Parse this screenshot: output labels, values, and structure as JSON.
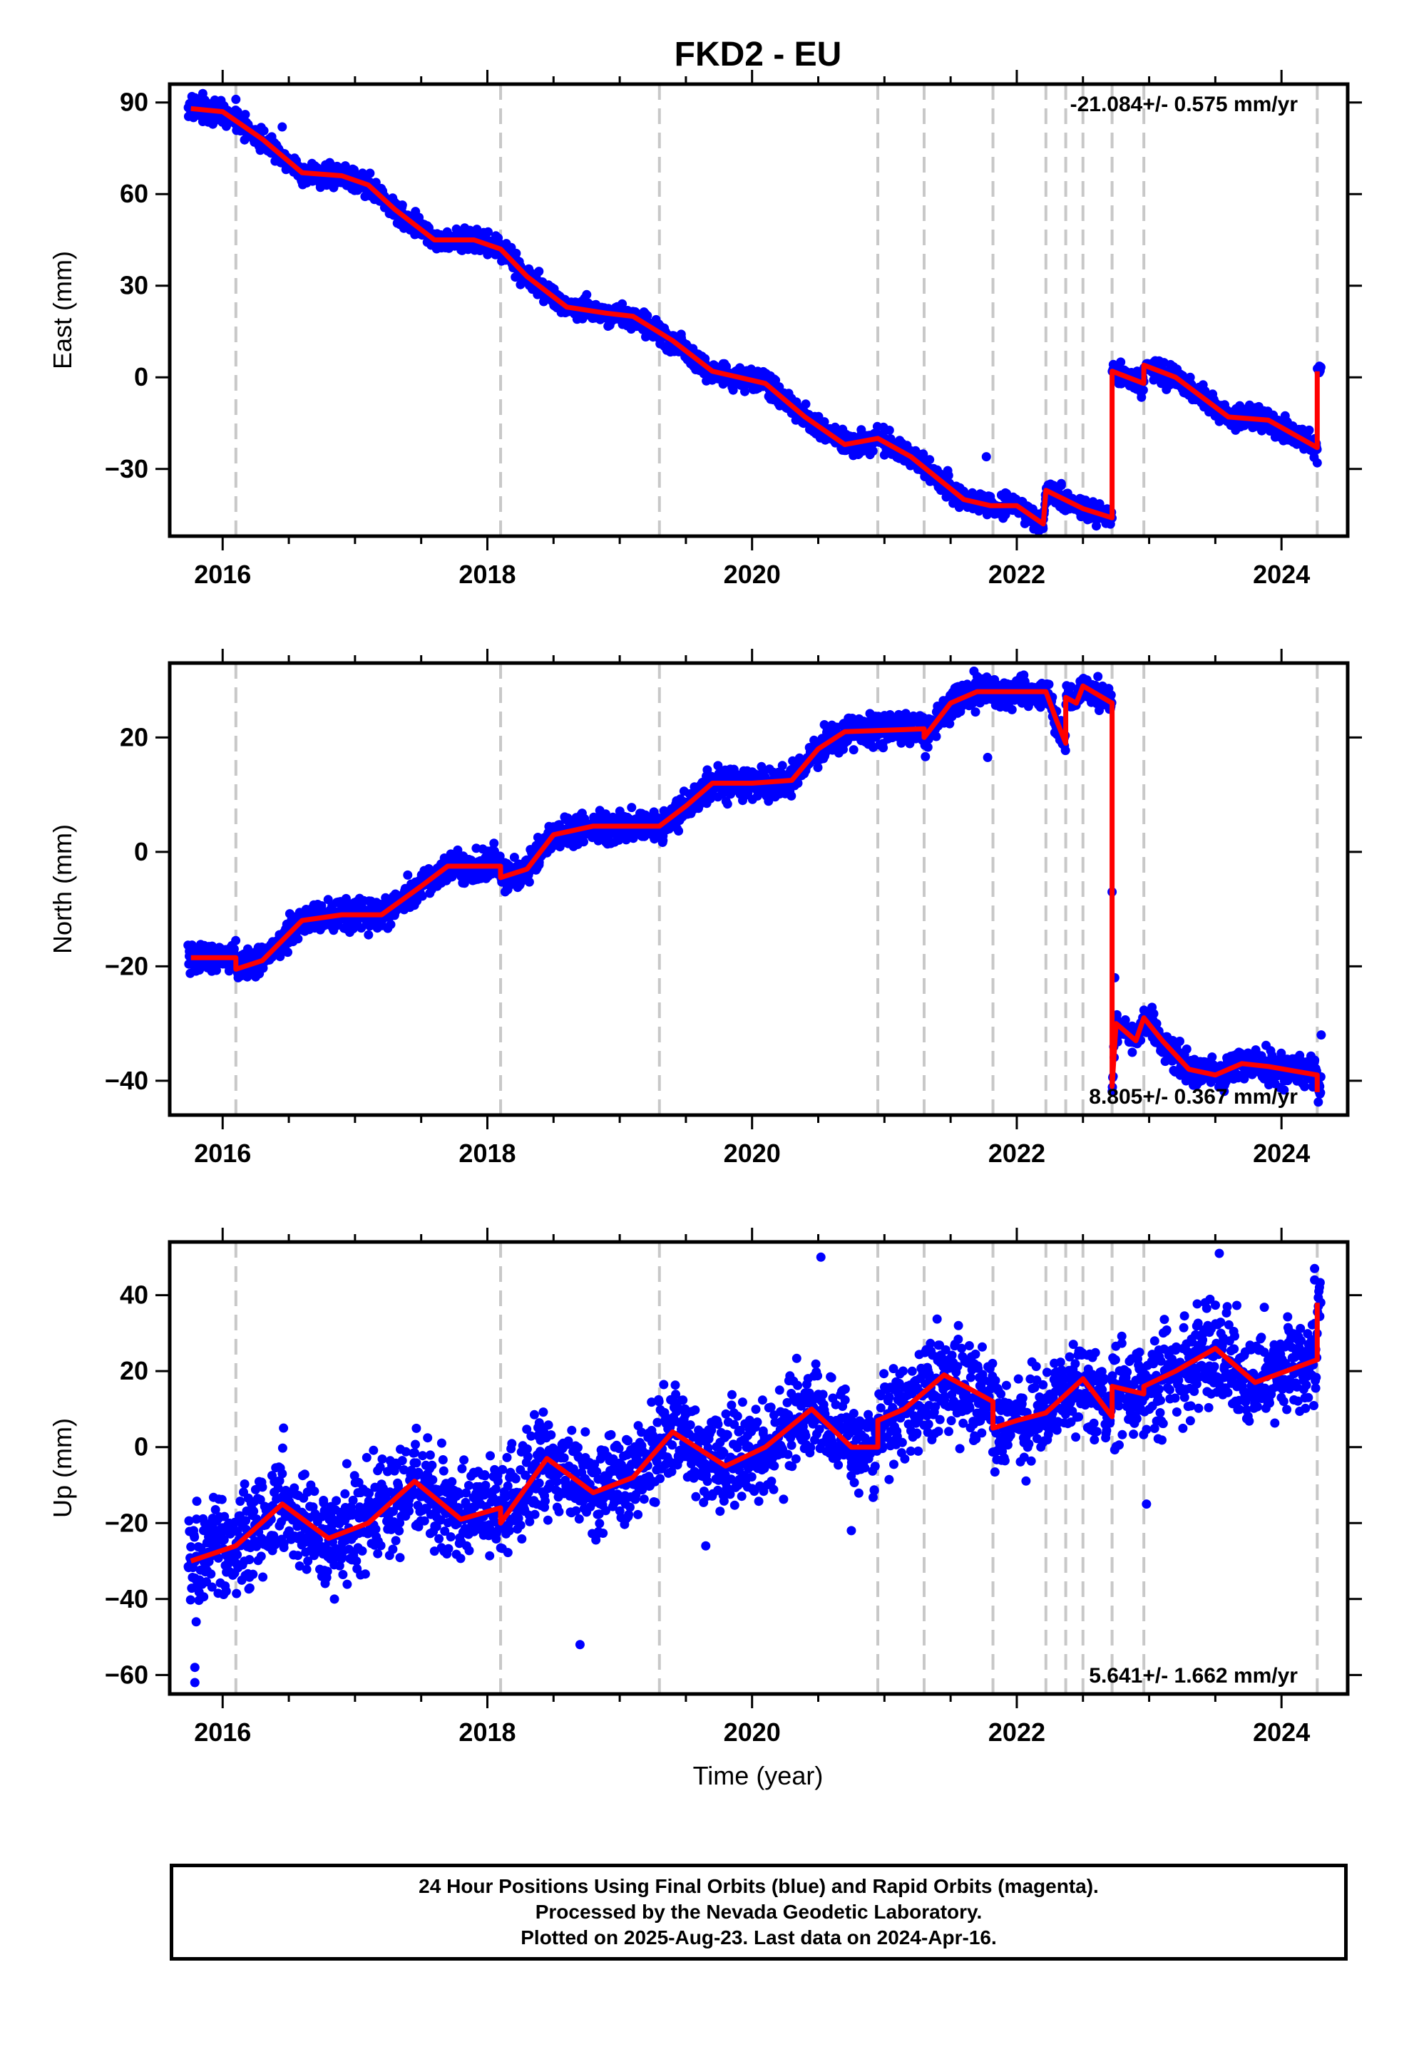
{
  "title": "FKD2 - EU",
  "xlabel": "Time (year)",
  "caption": [
    "24 Hour Positions Using Final Orbits (blue) and Rapid Orbits (magenta).",
    "Processed by the Nevada Geodetic Laboratory.",
    "Plotted on 2025-Aug-23. Last data on 2024-Apr-16."
  ],
  "colors": {
    "points": "#0000ff",
    "model": "#ff0000",
    "dashed": "#c8c8c8",
    "frame": "#000000"
  },
  "chart_data": [
    {
      "type": "scatter",
      "ylabel": "East (mm)",
      "xlim": [
        2015.6,
        2024.5
      ],
      "ylim": [
        -52,
        96
      ],
      "yticks": [
        90,
        60,
        30,
        0,
        -30
      ],
      "ytick_labels": [
        "90",
        "60",
        "30",
        "0",
        "−30"
      ],
      "xticks": [
        2016,
        2018,
        2020,
        2022,
        2024
      ],
      "xtick_labels": [
        "2016",
        "2018",
        "2020",
        "2022",
        "2024"
      ],
      "rate_annotation": "-21.084+/- 0.575 mm/yr",
      "rate_position": "top-right",
      "steps": [
        2016.1,
        2018.1,
        2019.3,
        2020.95,
        2021.3,
        2021.82,
        2022.22,
        2022.37,
        2022.5,
        2022.72,
        2022.96,
        2024.27
      ],
      "model_series": {
        "name": "model fit",
        "points": [
          [
            2015.76,
            88
          ],
          [
            2016.0,
            87
          ],
          [
            2016.3,
            78
          ],
          [
            2016.6,
            67
          ],
          [
            2016.9,
            66
          ],
          [
            2017.1,
            63
          ],
          [
            2017.3,
            55
          ],
          [
            2017.6,
            45
          ],
          [
            2017.9,
            45
          ],
          [
            2018.1,
            42
          ],
          [
            2018.3,
            33
          ],
          [
            2018.6,
            23
          ],
          [
            2018.9,
            21
          ],
          [
            2019.1,
            20
          ],
          [
            2019.4,
            12
          ],
          [
            2019.7,
            2
          ],
          [
            2019.9,
            0
          ],
          [
            2020.1,
            -2
          ],
          [
            2020.4,
            -13
          ],
          [
            2020.7,
            -22
          ],
          [
            2020.95,
            -20
          ],
          [
            2021.2,
            -26
          ],
          [
            2021.6,
            -40
          ],
          [
            2021.8,
            -42
          ],
          [
            2022.0,
            -42
          ],
          [
            2022.2,
            -48
          ],
          [
            2022.22,
            -37
          ],
          [
            2022.5,
            -43
          ],
          [
            2022.72,
            -46
          ],
          [
            2022.72,
            2
          ],
          [
            2022.96,
            -2
          ],
          [
            2022.96,
            4
          ],
          [
            2023.2,
            0
          ],
          [
            2023.6,
            -13
          ],
          [
            2023.9,
            -14
          ],
          [
            2024.27,
            -23
          ],
          [
            2024.27,
            2
          ]
        ]
      },
      "scatter_series": {
        "name": "daily positions",
        "x_range": [
          2015.74,
          2024.3
        ],
        "sigma": 1.8,
        "outliers": [
          [
            2016.45,
            82
          ],
          [
            2017.85,
            43
          ],
          [
            2021.77,
            -26
          ],
          [
            2016.1,
            91
          ],
          [
            2024.27,
            -28
          ]
        ]
      }
    },
    {
      "type": "scatter",
      "ylabel": "North (mm)",
      "xlim": [
        2015.6,
        2024.5
      ],
      "ylim": [
        -46,
        33
      ],
      "yticks": [
        20,
        0,
        -20,
        -40
      ],
      "ytick_labels": [
        "20",
        "0",
        "−20",
        "−40"
      ],
      "xticks": [
        2016,
        2018,
        2020,
        2022,
        2024
      ],
      "xtick_labels": [
        "2016",
        "2018",
        "2020",
        "2022",
        "2024"
      ],
      "rate_annotation": "8.805+/- 0.367 mm/yr",
      "rate_position": "bottom-right",
      "steps": [
        2016.1,
        2018.1,
        2019.3,
        2020.95,
        2021.3,
        2021.82,
        2022.22,
        2022.37,
        2022.5,
        2022.72,
        2022.96,
        2024.27
      ],
      "model_series": {
        "name": "model fit",
        "points": [
          [
            2015.76,
            -18.5
          ],
          [
            2016.1,
            -18.5
          ],
          [
            2016.1,
            -20.5
          ],
          [
            2016.3,
            -19
          ],
          [
            2016.6,
            -12
          ],
          [
            2016.9,
            -11
          ],
          [
            2017.2,
            -11
          ],
          [
            2017.5,
            -6
          ],
          [
            2017.7,
            -2.5
          ],
          [
            2018.1,
            -2.5
          ],
          [
            2018.1,
            -4.5
          ],
          [
            2018.3,
            -3
          ],
          [
            2018.5,
            3
          ],
          [
            2018.8,
            4.5
          ],
          [
            2019.3,
            4.5
          ],
          [
            2019.5,
            8
          ],
          [
            2019.7,
            12
          ],
          [
            2020.0,
            12
          ],
          [
            2020.3,
            12.5
          ],
          [
            2020.5,
            18
          ],
          [
            2020.7,
            21
          ],
          [
            2021.3,
            21.5
          ],
          [
            2021.3,
            20
          ],
          [
            2021.5,
            26
          ],
          [
            2021.7,
            28
          ],
          [
            2022.22,
            28
          ],
          [
            2022.3,
            23
          ],
          [
            2022.37,
            19
          ],
          [
            2022.37,
            27
          ],
          [
            2022.45,
            26
          ],
          [
            2022.5,
            29
          ],
          [
            2022.72,
            26
          ],
          [
            2022.72,
            -41
          ],
          [
            2022.75,
            -30
          ],
          [
            2022.9,
            -33
          ],
          [
            2022.96,
            -29
          ],
          [
            2023.1,
            -33
          ],
          [
            2023.3,
            -38
          ],
          [
            2023.5,
            -39
          ],
          [
            2023.7,
            -37
          ],
          [
            2023.9,
            -37.5
          ],
          [
            2024.27,
            -39
          ],
          [
            2024.27,
            -42
          ]
        ]
      },
      "scatter_series": {
        "name": "daily positions",
        "x_range": [
          2015.74,
          2024.3
        ],
        "sigma": 1.3,
        "outliers": [
          [
            2021.78,
            16.5
          ],
          [
            2018.05,
            1.5
          ],
          [
            2022.72,
            -7
          ],
          [
            2024.3,
            -32
          ],
          [
            2022.74,
            -22
          ]
        ]
      }
    },
    {
      "type": "scatter",
      "ylabel": "Up (mm)",
      "xlim": [
        2015.6,
        2024.5
      ],
      "ylim": [
        -65,
        54
      ],
      "yticks": [
        40,
        20,
        0,
        -20,
        -40,
        -60
      ],
      "ytick_labels": [
        "40",
        "20",
        "0",
        "−20",
        "−40",
        "−60"
      ],
      "xticks": [
        2016,
        2018,
        2020,
        2022,
        2024
      ],
      "xtick_labels": [
        "2016",
        "2018",
        "2020",
        "2022",
        "2024"
      ],
      "rate_annotation": "5.641+/- 1.662 mm/yr",
      "rate_position": "bottom-right",
      "steps": [
        2016.1,
        2018.1,
        2019.3,
        2020.95,
        2021.3,
        2021.82,
        2022.22,
        2022.37,
        2022.5,
        2022.72,
        2022.96,
        2024.27
      ],
      "model_series": {
        "name": "model fit",
        "points": [
          [
            2015.76,
            -30
          ],
          [
            2016.1,
            -26
          ],
          [
            2016.45,
            -15
          ],
          [
            2016.8,
            -24
          ],
          [
            2017.1,
            -20
          ],
          [
            2017.45,
            -9
          ],
          [
            2017.8,
            -19
          ],
          [
            2018.1,
            -16
          ],
          [
            2018.1,
            -20
          ],
          [
            2018.45,
            -3
          ],
          [
            2018.8,
            -12
          ],
          [
            2019.1,
            -8
          ],
          [
            2019.4,
            4
          ],
          [
            2019.8,
            -5
          ],
          [
            2020.1,
            0
          ],
          [
            2020.45,
            10
          ],
          [
            2020.75,
            0
          ],
          [
            2020.95,
            0
          ],
          [
            2020.95,
            7
          ],
          [
            2021.15,
            10
          ],
          [
            2021.45,
            19
          ],
          [
            2021.82,
            12
          ],
          [
            2021.82,
            5
          ],
          [
            2022.0,
            7
          ],
          [
            2022.22,
            9
          ],
          [
            2022.5,
            18
          ],
          [
            2022.72,
            8
          ],
          [
            2022.72,
            16
          ],
          [
            2022.96,
            14
          ],
          [
            2022.96,
            16
          ],
          [
            2023.2,
            20
          ],
          [
            2023.5,
            26
          ],
          [
            2023.8,
            17
          ],
          [
            2024.27,
            23
          ],
          [
            2024.27,
            38
          ]
        ]
      },
      "scatter_series": {
        "name": "daily positions",
        "x_range": [
          2015.74,
          2024.3
        ],
        "sigma": 6.5,
        "outliers": [
          [
            2020.52,
            50
          ],
          [
            2023.53,
            51
          ],
          [
            2018.7,
            -52
          ],
          [
            2015.79,
            -62
          ],
          [
            2015.79,
            -58
          ],
          [
            2015.8,
            -46
          ],
          [
            2024.25,
            47
          ],
          [
            2024.25,
            44
          ],
          [
            2022.98,
            -15
          ],
          [
            2020.75,
            -22
          ],
          [
            2019.65,
            -26
          ],
          [
            2016.46,
            5
          ]
        ]
      }
    }
  ]
}
